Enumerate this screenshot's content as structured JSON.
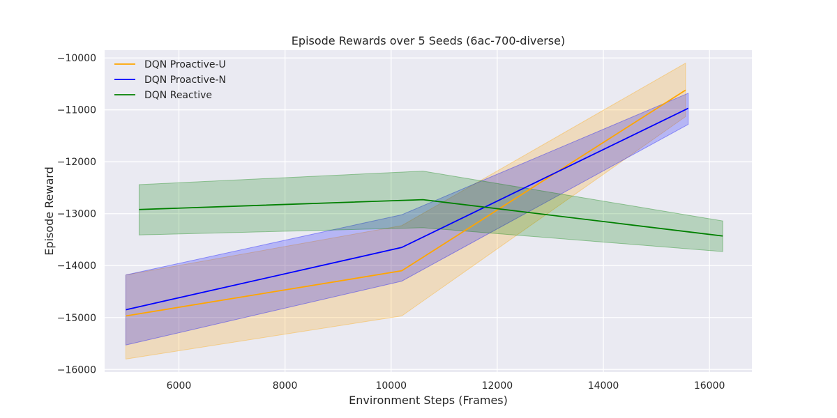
{
  "chart_data": {
    "type": "line",
    "title": "Episode Rewards over 5 Seeds (6ac-700-diverse)",
    "xlabel": "Environment Steps (Frames)",
    "ylabel": "Episode Reward",
    "xlim": [
      4600,
      16800
    ],
    "ylim": [
      -16050,
      -9850
    ],
    "xticks": [
      6000,
      8000,
      10000,
      12000,
      14000,
      16000
    ],
    "yticks": [
      -16000,
      -15000,
      -14000,
      -13000,
      -12000,
      -11000,
      -10000
    ],
    "xtick_labels": [
      "6000",
      "8000",
      "10000",
      "12000",
      "14000",
      "16000"
    ],
    "ytick_labels": [
      "−16000",
      "−15000",
      "−14000",
      "−13000",
      "−12000",
      "−11000",
      "−10000"
    ],
    "grid": true,
    "legend_position": "top-left",
    "series": [
      {
        "name": "DQN Proactive-U",
        "color": "#ffa500",
        "x": [
          5000,
          10200,
          15550
        ],
        "y": [
          -14970,
          -14100,
          -10620
        ],
        "upper": [
          -14180,
          -13230,
          -10100
        ],
        "lower": [
          -15800,
          -14970,
          -11130
        ]
      },
      {
        "name": "DQN Proactive-N",
        "color": "#0000ff",
        "x": [
          5000,
          10200,
          15600
        ],
        "y": [
          -14850,
          -13650,
          -10970
        ],
        "upper": [
          -14180,
          -13020,
          -10680
        ],
        "lower": [
          -15530,
          -14300,
          -11280
        ]
      },
      {
        "name": "DQN Reactive",
        "color": "#008000",
        "x": [
          5250,
          10600,
          16250
        ],
        "y": [
          -12920,
          -12730,
          -13430
        ],
        "upper": [
          -12440,
          -12180,
          -13140
        ],
        "lower": [
          -13410,
          -13270,
          -13730
        ]
      }
    ]
  }
}
